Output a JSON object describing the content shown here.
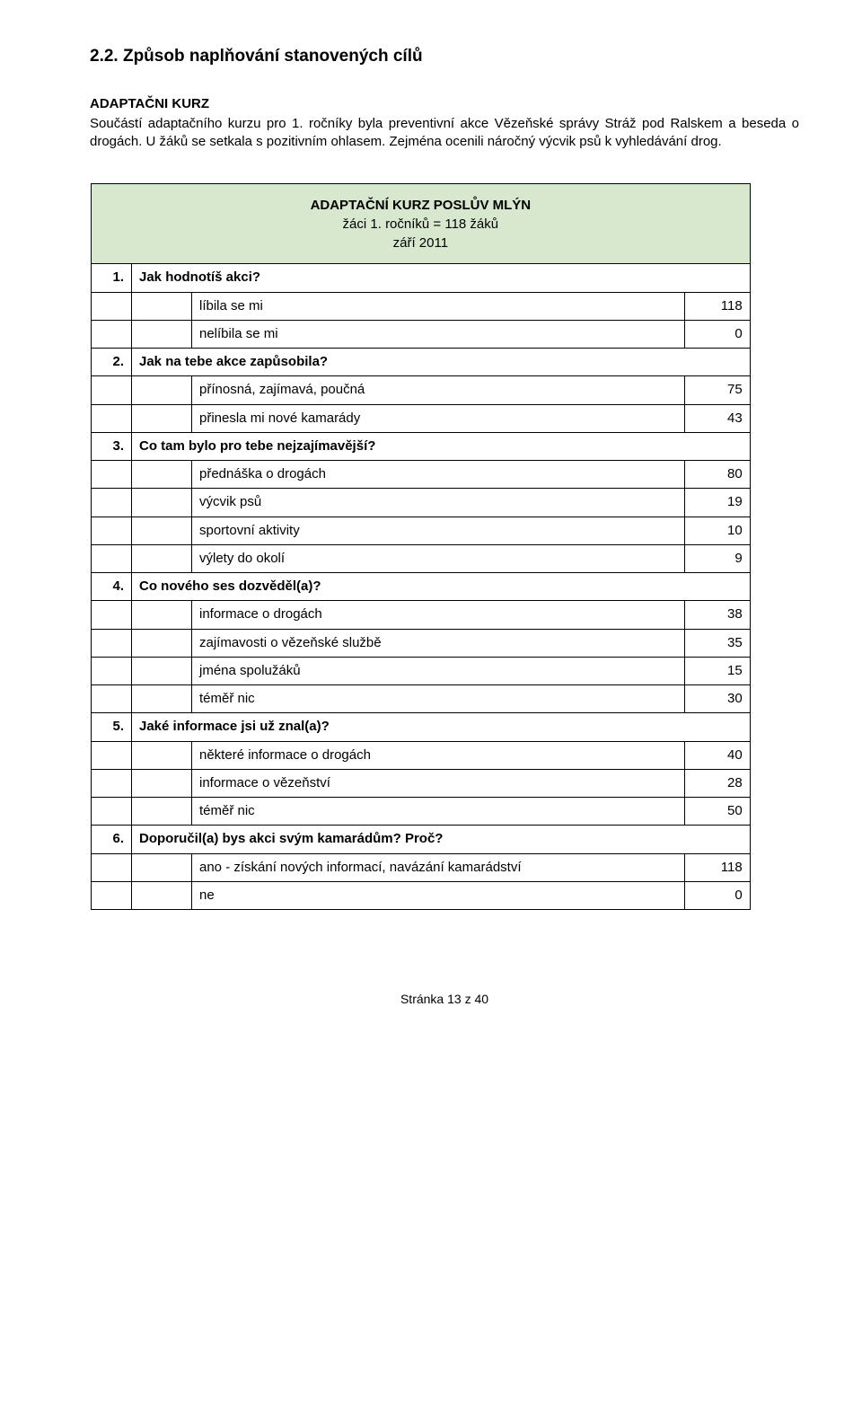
{
  "section_title": "2.2. Způsob naplňování stanovených cílů",
  "subhead": "ADAPTAČNI KURZ",
  "intro": "Součástí adaptačního kurzu pro 1. ročníky byla preventivní akce Vězeňské správy Stráž pod Ralskem a beseda o drogách. U žáků se setkala s pozitivním ohlasem. Zejména ocenili náročný výcvik psů k vyhledávání drog.",
  "table": {
    "header_bg": "#d8e8cf",
    "title_line1": "ADAPTAČNÍ KURZ POSLŮV MLÝN",
    "title_line2": "žáci 1. ročníků = 118 žáků",
    "title_line3": "září 2011",
    "questions": [
      {
        "n": "1.",
        "text": "Jak hodnotíš akci?",
        "answers": [
          {
            "label": "líbila se mi",
            "value": "118"
          },
          {
            "label": "nelíbila se mi",
            "value": "0"
          }
        ]
      },
      {
        "n": "2.",
        "text": "Jak na tebe akce zapůsobila?",
        "answers": [
          {
            "label": "přínosná, zajímavá,  poučná",
            "value": "75"
          },
          {
            "label": "přinesla mi nové kamarády",
            "value": "43"
          }
        ]
      },
      {
        "n": "3.",
        "text": "Co tam bylo pro tebe nejzajímavější?",
        "answers": [
          {
            "label": "přednáška o drogách",
            "value": "80"
          },
          {
            "label": "výcvik psů",
            "value": "19"
          },
          {
            "label": "sportovní aktivity",
            "value": "10"
          },
          {
            "label": "výlety do okolí",
            "value": "9"
          }
        ]
      },
      {
        "n": "4.",
        "text": "Co nového ses dozvěděl(a)?",
        "answers": [
          {
            "label": "informace o drogách",
            "value": "38"
          },
          {
            "label": "zajímavosti o vězeňské službě",
            "value": "35"
          },
          {
            "label": "jména spolužáků",
            "value": "15"
          },
          {
            "label": "téměř nic",
            "value": "30"
          }
        ]
      },
      {
        "n": "5.",
        "text": "Jaké informace jsi už znal(a)?",
        "answers": [
          {
            "label": "některé informace o drogách",
            "value": "40"
          },
          {
            "label": "informace o vězeňství",
            "value": "28"
          },
          {
            "label": "téměř nic",
            "value": "50"
          }
        ]
      },
      {
        "n": "6.",
        "text": "Doporučil(a) bys akci svým kamarádům? Proč?",
        "answers": [
          {
            "label": "ano - získání nových informací, navázání kamarádství",
            "value": "118"
          },
          {
            "label": "ne",
            "value": "0"
          }
        ]
      }
    ]
  },
  "footer": "Stránka 13 z 40"
}
